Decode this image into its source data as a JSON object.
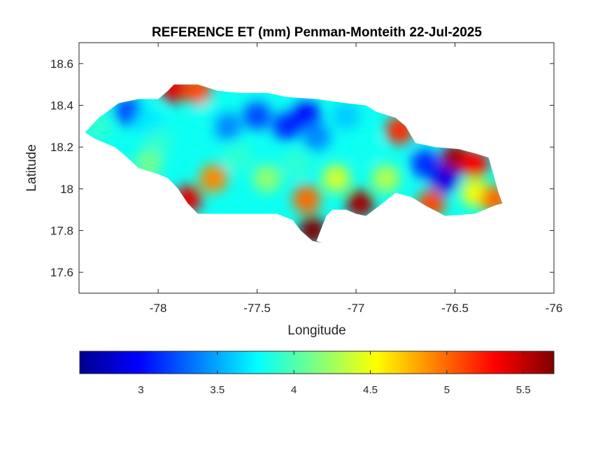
{
  "chart_data": {
    "type": "heatmap",
    "title": "REFERENCE ET (mm) Penman-Monteith 22-Jul-2025",
    "xlabel": "Longitude",
    "ylabel": "Latitude",
    "xlim": [
      -78.4,
      -76.0
    ],
    "ylim": [
      17.5,
      18.7
    ],
    "xticks": [
      -78,
      -77.5,
      -77,
      -76.5,
      -76
    ],
    "xtick_labels": [
      "-78",
      "-77.5",
      "-77",
      "-76.5",
      "-76"
    ],
    "yticks": [
      17.6,
      17.8,
      18.0,
      18.2,
      18.4,
      18.6
    ],
    "ytick_labels": [
      "17.6",
      "17.8",
      "18",
      "18.2",
      "18.4",
      "18.6"
    ],
    "colormap": "jet",
    "colorbar": {
      "orientation": "horizontal",
      "location": "bottom",
      "range": [
        2.6,
        5.7
      ],
      "ticks": [
        3,
        3.5,
        4,
        4.5,
        5,
        5.5
      ],
      "tick_labels": [
        "3",
        "3.5",
        "4",
        "4.5",
        "5",
        "5.5"
      ]
    },
    "grid": false,
    "region_outline": [
      [
        -78.37,
        18.27
      ],
      [
        -78.3,
        18.34
      ],
      [
        -78.2,
        18.41
      ],
      [
        -78.1,
        18.43
      ],
      [
        -78.0,
        18.43
      ],
      [
        -77.95,
        18.47
      ],
      [
        -77.92,
        18.5
      ],
      [
        -77.8,
        18.5
      ],
      [
        -77.7,
        18.47
      ],
      [
        -77.6,
        18.46
      ],
      [
        -77.45,
        18.46
      ],
      [
        -77.35,
        18.44
      ],
      [
        -77.2,
        18.43
      ],
      [
        -77.05,
        18.41
      ],
      [
        -76.95,
        18.4
      ],
      [
        -76.9,
        18.37
      ],
      [
        -76.8,
        18.34
      ],
      [
        -76.75,
        18.3
      ],
      [
        -76.7,
        18.22
      ],
      [
        -76.6,
        18.2
      ],
      [
        -76.48,
        18.19
      ],
      [
        -76.4,
        18.17
      ],
      [
        -76.33,
        18.15
      ],
      [
        -76.3,
        18.05
      ],
      [
        -76.28,
        17.98
      ],
      [
        -76.26,
        17.93
      ],
      [
        -76.3,
        17.92
      ],
      [
        -76.4,
        17.88
      ],
      [
        -76.55,
        17.87
      ],
      [
        -76.65,
        17.92
      ],
      [
        -76.72,
        17.96
      ],
      [
        -76.8,
        17.98
      ],
      [
        -76.88,
        17.92
      ],
      [
        -76.95,
        17.87
      ],
      [
        -77.0,
        17.88
      ],
      [
        -77.05,
        17.9
      ],
      [
        -77.12,
        17.9
      ],
      [
        -77.15,
        17.87
      ],
      [
        -77.18,
        17.8
      ],
      [
        -77.2,
        17.75
      ],
      [
        -77.17,
        17.74
      ],
      [
        -77.22,
        17.75
      ],
      [
        -77.28,
        17.8
      ],
      [
        -77.32,
        17.85
      ],
      [
        -77.4,
        17.88
      ],
      [
        -77.55,
        17.88
      ],
      [
        -77.7,
        17.88
      ],
      [
        -77.8,
        17.88
      ],
      [
        -77.85,
        17.93
      ],
      [
        -77.9,
        18.0
      ],
      [
        -77.95,
        18.05
      ],
      [
        -78.0,
        18.07
      ],
      [
        -78.1,
        18.1
      ],
      [
        -78.18,
        18.17
      ],
      [
        -78.22,
        18.2
      ],
      [
        -78.27,
        18.22
      ],
      [
        -78.32,
        18.24
      ],
      [
        -78.37,
        18.27
      ]
    ],
    "field_samples": [
      {
        "lon": -78.3,
        "lat": 18.3,
        "value": 3.9
      },
      {
        "lon": -78.15,
        "lat": 18.37,
        "value": 3.2
      },
      {
        "lon": -78.05,
        "lat": 18.32,
        "value": 3.7
      },
      {
        "lon": -78.0,
        "lat": 18.22,
        "value": 3.9
      },
      {
        "lon": -78.05,
        "lat": 18.12,
        "value": 4.1
      },
      {
        "lon": -77.92,
        "lat": 18.48,
        "value": 5.4
      },
      {
        "lon": -77.8,
        "lat": 18.47,
        "value": 5.1
      },
      {
        "lon": -77.85,
        "lat": 17.95,
        "value": 5.4
      },
      {
        "lon": -77.72,
        "lat": 18.05,
        "value": 4.9
      },
      {
        "lon": -77.75,
        "lat": 18.35,
        "value": 3.8
      },
      {
        "lon": -77.65,
        "lat": 18.3,
        "value": 3.4
      },
      {
        "lon": -77.5,
        "lat": 18.35,
        "value": 3.2
      },
      {
        "lon": -77.6,
        "lat": 18.15,
        "value": 3.9
      },
      {
        "lon": -77.45,
        "lat": 18.05,
        "value": 4.2
      },
      {
        "lon": -77.35,
        "lat": 18.3,
        "value": 3.1
      },
      {
        "lon": -77.25,
        "lat": 18.35,
        "value": 3.0
      },
      {
        "lon": -77.2,
        "lat": 18.25,
        "value": 3.4
      },
      {
        "lon": -77.3,
        "lat": 18.12,
        "value": 3.9
      },
      {
        "lon": -77.25,
        "lat": 17.95,
        "value": 5.0
      },
      {
        "lon": -77.22,
        "lat": 17.8,
        "value": 5.7
      },
      {
        "lon": -77.1,
        "lat": 18.05,
        "value": 4.4
      },
      {
        "lon": -77.05,
        "lat": 18.35,
        "value": 3.6
      },
      {
        "lon": -76.95,
        "lat": 18.2,
        "value": 3.8
      },
      {
        "lon": -76.98,
        "lat": 17.93,
        "value": 5.6
      },
      {
        "lon": -76.85,
        "lat": 18.05,
        "value": 4.3
      },
      {
        "lon": -76.78,
        "lat": 18.28,
        "value": 5.2
      },
      {
        "lon": -76.65,
        "lat": 18.12,
        "value": 3.1
      },
      {
        "lon": -76.55,
        "lat": 18.05,
        "value": 2.9
      },
      {
        "lon": -76.5,
        "lat": 18.15,
        "value": 5.6
      },
      {
        "lon": -76.4,
        "lat": 18.12,
        "value": 5.3
      },
      {
        "lon": -76.62,
        "lat": 17.93,
        "value": 5.1
      },
      {
        "lon": -76.4,
        "lat": 17.98,
        "value": 4.5
      },
      {
        "lon": -76.3,
        "lat": 17.95,
        "value": 5.0
      }
    ]
  }
}
